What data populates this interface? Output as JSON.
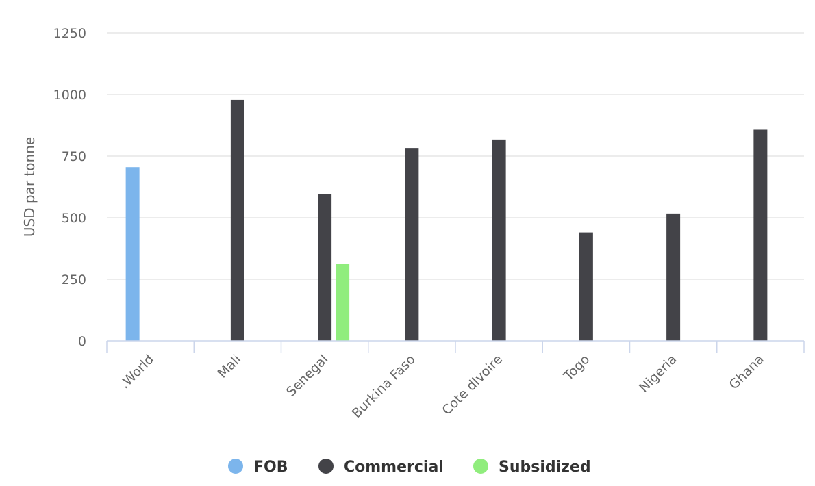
{
  "chart_data": {
    "type": "bar",
    "title": "",
    "xlabel": "",
    "ylabel": "USD par tonne",
    "categories": [
      ".World",
      "Mali",
      "Senegal",
      "Burkina Faso",
      "Cote dIvoire",
      "Togo",
      "Nigeria",
      "Ghana"
    ],
    "y_ticks": [
      "0",
      "250",
      "500",
      "750",
      "1000",
      "1250"
    ],
    "ylim": [
      0,
      1250
    ],
    "grid": true,
    "legend_position": "bottom-center",
    "series": [
      {
        "name": "FOB",
        "color": "#7cb5ec",
        "values": [
          705,
          null,
          null,
          null,
          null,
          null,
          null,
          null
        ]
      },
      {
        "name": "Commercial",
        "color": "#434348",
        "values": [
          null,
          978,
          595,
          783,
          817,
          440,
          517,
          857
        ]
      },
      {
        "name": "Subsidized",
        "color": "#90ed7d",
        "values": [
          null,
          null,
          312,
          null,
          null,
          null,
          null,
          null
        ]
      }
    ]
  }
}
